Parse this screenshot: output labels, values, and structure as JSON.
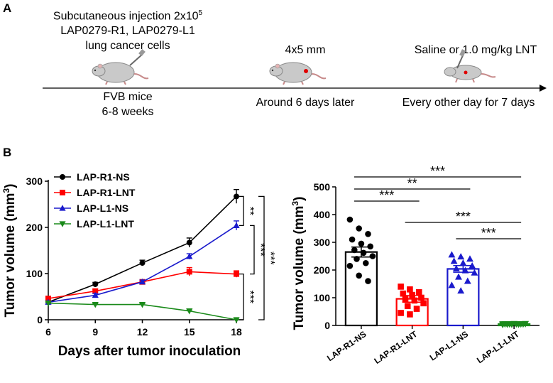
{
  "panel_a": {
    "label": "A",
    "step1_text": [
      "Subcutaneous injection 2x10",
      "LAP0279-R1, LAP0279-L1",
      "lung cancer cells"
    ],
    "step1_superscript": "5",
    "step1_below": [
      "FVB mice",
      "6-8 weeks"
    ],
    "step2_above": "4x5 mm",
    "step2_below": "Around 6 days later",
    "step3_above": "Saline or 1.0 mg/kg LNT",
    "step3_below": "Every other day for 7 days",
    "icons": [
      "mouse-icon",
      "mouse-tumor-icon",
      "mouse-injection-icon"
    ]
  },
  "panel_b": {
    "label": "B"
  },
  "chart_data": [
    {
      "type": "line",
      "xlabel": "Days after tumor inoculation",
      "ylabel": "Tumor volume (mm",
      "ylabel_sup": "3",
      "ylabel_close": ")",
      "x": [
        6,
        9,
        12,
        15,
        18
      ],
      "xlim": [
        6,
        18
      ],
      "ylim": [
        0,
        300
      ],
      "yticks": [
        0,
        100,
        200,
        300
      ],
      "legend_position": "top-left",
      "series": [
        {
          "name": "LAP-R1-NS",
          "color": "#000000",
          "marker": "circle",
          "values": [
            38,
            77,
            123,
            167,
            267
          ],
          "errors": [
            4,
            4,
            6,
            10,
            15
          ]
        },
        {
          "name": "LAP-R1-LNT",
          "color": "#ff0000",
          "marker": "square",
          "values": [
            46,
            62,
            82,
            104,
            99
          ],
          "errors": [
            4,
            4,
            4,
            9,
            7
          ]
        },
        {
          "name": "LAP-L1-NS",
          "color": "#1a1acc",
          "marker": "triangle-up",
          "values": [
            38,
            53,
            82,
            137,
            204
          ],
          "errors": [
            3,
            4,
            4,
            6,
            10
          ]
        },
        {
          "name": "LAP-L1-LNT",
          "color": "#1a8a1a",
          "marker": "triangle-down",
          "values": [
            36,
            33,
            33,
            19,
            0
          ],
          "errors": [
            2,
            2,
            2,
            2,
            1
          ]
        }
      ],
      "significance": [
        "**",
        "***",
        "***"
      ]
    },
    {
      "type": "bar",
      "ylabel": "Tumor volume (mm",
      "ylabel_sup": "3",
      "ylabel_close": ")",
      "categories": [
        "LAP-R1-NS",
        "LAP-R1-LNT",
        "LAP-L1-NS",
        "LAP-L1-LNT"
      ],
      "values": [
        265,
        96,
        204,
        5
      ],
      "errors": [
        18,
        12,
        12,
        1
      ],
      "colors": [
        "#000000",
        "#ff0000",
        "#1a1acc",
        "#1a8a1a"
      ],
      "markers": [
        "circle",
        "square",
        "triangle-up",
        "triangle-down"
      ],
      "ylim": [
        0,
        500
      ],
      "yticks": [
        0,
        100,
        200,
        300,
        400,
        500
      ],
      "points": [
        [
          382,
          350,
          330,
          310,
          295,
          285,
          272,
          262,
          250,
          240,
          225,
          215,
          180,
          160
        ],
        [
          140,
          130,
          120,
          115,
          110,
          100,
          95,
          90,
          80,
          70,
          60,
          45,
          40
        ],
        [
          255,
          248,
          240,
          232,
          225,
          215,
          205,
          198,
          190,
          175,
          160,
          145,
          125
        ],
        [
          3,
          4,
          5,
          5,
          6,
          5,
          4,
          5,
          6,
          5,
          4,
          5,
          5
        ]
      ],
      "comparisons": [
        {
          "from": 0,
          "to": 3,
          "label": "***"
        },
        {
          "from": 0,
          "to": 2,
          "label": "**"
        },
        {
          "from": 0,
          "to": 1,
          "label": "***"
        },
        {
          "from": 1,
          "to": 3,
          "label": "***"
        },
        {
          "from": 2,
          "to": 3,
          "label": "***"
        }
      ]
    }
  ]
}
